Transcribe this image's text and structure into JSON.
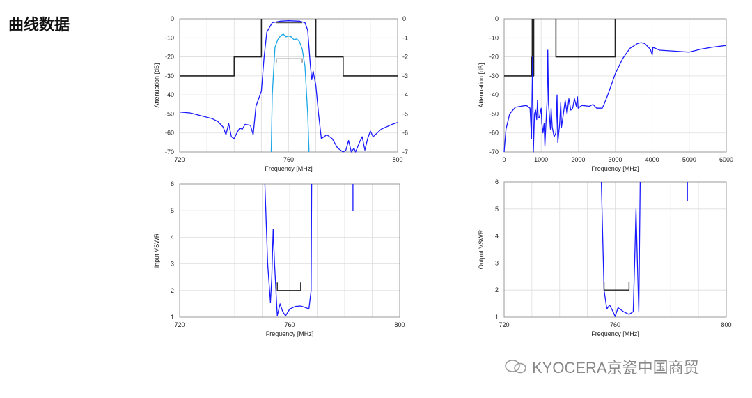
{
  "heading": "曲线数据",
  "watermark": "KYOCERA京瓷中国商贸",
  "colors": {
    "series_main": "#1a1aff",
    "series_light": "#1aa6e6",
    "mask": "#222222",
    "bracket": "#555555",
    "grid": "#dddddd"
  },
  "chart_data": [
    {
      "type": "line",
      "title": "",
      "xlabel": "Frequency [MHz]",
      "ylabel": "Attenuation [dB]",
      "xlim": [
        720,
        800
      ],
      "ylim": [
        -70,
        0
      ],
      "y2lim": [
        -7,
        0
      ],
      "xticks": [
        720,
        760,
        800
      ],
      "yticks": [
        0,
        -10,
        -20,
        -30,
        -40,
        -50,
        -60,
        -70
      ],
      "y2ticks": [
        0,
        -1,
        -2,
        -3,
        -4,
        -5,
        -6,
        -7
      ],
      "grid": true,
      "xgrid_step": 10,
      "series": [
        {
          "role": "mask",
          "color": "#222222",
          "axis": "y",
          "points": [
            [
              720,
              -30
            ],
            [
              740,
              -30
            ],
            [
              740,
              -20
            ],
            [
              750,
              -20
            ],
            [
              750,
              0
            ]
          ]
        },
        {
          "role": "mask",
          "color": "#222222",
          "axis": "y",
          "points": [
            [
              770,
              0
            ],
            [
              770,
              -20
            ],
            [
              780,
              -20
            ],
            [
              780,
              -30
            ],
            [
              800,
              -30
            ]
          ]
        },
        {
          "role": "wide",
          "color": "#1a1aff",
          "axis": "y",
          "points": [
            [
              720,
              -49
            ],
            [
              724,
              -49.5
            ],
            [
              728,
              -51
            ],
            [
              732,
              -52.5
            ],
            [
              734,
              -54
            ],
            [
              736,
              -57
            ],
            [
              737,
              -61
            ],
            [
              738,
              -55
            ],
            [
              739,
              -62
            ],
            [
              740,
              -63
            ],
            [
              741,
              -60
            ],
            [
              742,
              -57.5
            ],
            [
              743,
              -58
            ],
            [
              744,
              -55.5
            ],
            [
              746,
              -56
            ],
            [
              747,
              -61
            ],
            [
              748,
              -46
            ],
            [
              749,
              -42
            ],
            [
              750,
              -38
            ],
            [
              751,
              -20
            ],
            [
              752,
              -7
            ],
            [
              754,
              -2
            ],
            [
              757,
              -1.2
            ],
            [
              760,
              -1
            ],
            [
              764,
              -1.2
            ],
            [
              766,
              -2
            ],
            [
              767,
              -6
            ],
            [
              768,
              -25
            ],
            [
              768.5,
              -32
            ],
            [
              769,
              -27.5
            ],
            [
              770,
              -35
            ],
            [
              771,
              -50
            ],
            [
              772,
              -63
            ],
            [
              773,
              -62
            ],
            [
              774,
              -61
            ],
            [
              776,
              -63
            ],
            [
              778,
              -68
            ],
            [
              780,
              -70
            ],
            [
              781,
              -69
            ],
            [
              782,
              -64
            ],
            [
              783,
              -70
            ],
            [
              784,
              -68
            ],
            [
              784.6,
              -70
            ],
            [
              786,
              -65
            ],
            [
              787,
              -62
            ],
            [
              788,
              -69
            ],
            [
              789,
              -63
            ],
            [
              790,
              -59
            ],
            [
              791,
              -62
            ],
            [
              794,
              -58
            ],
            [
              798,
              -55.5
            ],
            [
              800,
              -54.5
            ]
          ]
        },
        {
          "role": "passband",
          "color": "#1aa6e6",
          "axis": "y2",
          "points": [
            [
              753.6,
              -7
            ],
            [
              754,
              -4
            ],
            [
              755,
              -1.5
            ],
            [
              756,
              -1.1
            ],
            [
              757,
              -0.9
            ],
            [
              758,
              -0.8
            ],
            [
              759,
              -0.95
            ],
            [
              760,
              -0.9
            ],
            [
              761,
              -0.95
            ],
            [
              762,
              -1.1
            ],
            [
              763,
              -1.05
            ],
            [
              764,
              -1.2
            ],
            [
              765,
              -1.6
            ],
            [
              766,
              -2.5
            ],
            [
              767,
              -5
            ],
            [
              767.5,
              -7
            ]
          ]
        },
        {
          "role": "bracket",
          "color": "#555555",
          "axis": "y",
          "points": [
            [
              755.5,
              -2
            ],
            [
              765,
              -2
            ]
          ]
        },
        {
          "role": "bracket",
          "color": "#888888",
          "axis": "y2",
          "points": [
            [
              755.5,
              -2.3
            ],
            [
              755.5,
              -2.1
            ],
            [
              765,
              -2.1
            ],
            [
              765,
              -2.3
            ]
          ]
        }
      ]
    },
    {
      "type": "line",
      "title": "",
      "xlabel": "Frequency [MHz]",
      "ylabel": "Attenuation [dB]",
      "xlim": [
        0,
        6000
      ],
      "ylim": [
        -70,
        0
      ],
      "xticks": [
        0,
        1000,
        2000,
        3000,
        4000,
        5000,
        6000
      ],
      "yticks": [
        0,
        -10,
        -20,
        -30,
        -40,
        -50,
        -60,
        -70
      ],
      "grid": true,
      "xgrid_step": 1000,
      "series": [
        {
          "role": "mask",
          "color": "#222222",
          "axis": "y",
          "points": [
            [
              0,
              -30
            ],
            [
              760,
              -30
            ],
            [
              760,
              0
            ]
          ]
        },
        {
          "role": "mask",
          "color": "#222222",
          "axis": "y",
          "points": [
            [
              800,
              0
            ],
            [
              800,
              -30
            ],
            [
              740,
              -30
            ],
            [
              740,
              -20
            ]
          ]
        },
        {
          "role": "mask",
          "color": "#222222",
          "axis": "y",
          "points": [
            [
              1400,
              0
            ],
            [
              1400,
              -20
            ],
            [
              3000,
              -20
            ],
            [
              3000,
              0
            ]
          ]
        },
        {
          "role": "wide",
          "color": "#1a1aff",
          "axis": "y",
          "points": [
            [
              0,
              -70
            ],
            [
              50,
              -58
            ],
            [
              150,
              -50
            ],
            [
              300,
              -46.5
            ],
            [
              600,
              -45.5
            ],
            [
              700,
              -47
            ],
            [
              740,
              -63
            ],
            [
              770,
              -20
            ],
            [
              790,
              -70
            ],
            [
              820,
              -50
            ],
            [
              850,
              -48
            ],
            [
              880,
              -53
            ],
            [
              900,
              -43
            ],
            [
              920,
              -52
            ],
            [
              950,
              -52
            ],
            [
              1000,
              -47
            ],
            [
              1020,
              -55
            ],
            [
              1050,
              -60
            ],
            [
              1080,
              -55
            ],
            [
              1100,
              -67
            ],
            [
              1130,
              -55
            ],
            [
              1160,
              -43
            ],
            [
              1180,
              -16.5
            ],
            [
              1200,
              -45
            ],
            [
              1250,
              -58
            ],
            [
              1270,
              -47
            ],
            [
              1300,
              -57
            ],
            [
              1350,
              -62
            ],
            [
              1400,
              -60
            ],
            [
              1430,
              -40
            ],
            [
              1450,
              -65
            ],
            [
              1500,
              -55
            ],
            [
              1530,
              -44
            ],
            [
              1550,
              -57
            ],
            [
              1600,
              -50
            ],
            [
              1650,
              -43
            ],
            [
              1700,
              -50
            ],
            [
              1750,
              -42
            ],
            [
              1800,
              -48
            ],
            [
              1850,
              -47
            ],
            [
              1900,
              -42
            ],
            [
              1950,
              -46
            ],
            [
              1980,
              -41
            ],
            [
              2000,
              -47
            ],
            [
              2100,
              -45.5
            ],
            [
              2300,
              -46
            ],
            [
              2400,
              -45
            ],
            [
              2500,
              -47
            ],
            [
              2650,
              -47
            ],
            [
              2700,
              -45
            ],
            [
              2800,
              -40
            ],
            [
              3000,
              -29
            ],
            [
              3200,
              -21
            ],
            [
              3400,
              -15.5
            ],
            [
              3600,
              -13
            ],
            [
              3700,
              -12.5
            ],
            [
              3800,
              -13
            ],
            [
              3950,
              -16
            ],
            [
              4000,
              -19
            ],
            [
              4020,
              -15
            ],
            [
              4200,
              -16.5
            ],
            [
              4600,
              -17
            ],
            [
              5000,
              -17.5
            ],
            [
              5300,
              -16
            ],
            [
              5600,
              -15
            ],
            [
              6000,
              -14
            ]
          ]
        }
      ]
    },
    {
      "type": "line",
      "title": "",
      "xlabel": "Frequency [MHz]",
      "ylabel": "Input VSWR",
      "xlim": [
        720,
        800
      ],
      "ylim": [
        1,
        6
      ],
      "xticks": [
        720,
        760,
        800
      ],
      "yticks": [
        1,
        2,
        3,
        4,
        5,
        6
      ],
      "grid": true,
      "xgrid_step": 10,
      "series": [
        {
          "role": "vswr",
          "color": "#1a1aff",
          "axis": "y",
          "points": [
            [
              751,
              6
            ],
            [
              752,
              3
            ],
            [
              753,
              1.55
            ],
            [
              753.5,
              2.5
            ],
            [
              754,
              4.3
            ],
            [
              754.5,
              3
            ],
            [
              755.5,
              1.05
            ],
            [
              756.5,
              1.5
            ],
            [
              757.5,
              1.2
            ],
            [
              758.5,
              1.05
            ],
            [
              760,
              1.3
            ],
            [
              762,
              1.4
            ],
            [
              764,
              1.42
            ],
            [
              766,
              1.35
            ],
            [
              767,
              1.3
            ],
            [
              767.8,
              2
            ],
            [
              768,
              6
            ]
          ]
        },
        {
          "role": "spur",
          "color": "#1a1aff",
          "axis": "y",
          "points": [
            [
              783,
              5
            ],
            [
              783,
              6
            ]
          ]
        },
        {
          "role": "bracket",
          "color": "#222222",
          "axis": "y",
          "points": [
            [
              755.5,
              2.3
            ],
            [
              755.5,
              2
            ],
            [
              764,
              2
            ],
            [
              764,
              2.3
            ]
          ]
        }
      ]
    },
    {
      "type": "line",
      "title": "",
      "xlabel": "Frequency [MHz]",
      "ylabel": "Output VSWR",
      "xlim": [
        720,
        800
      ],
      "ylim": [
        1,
        6
      ],
      "xticks": [
        720,
        760,
        800
      ],
      "yticks": [
        1,
        2,
        3,
        4,
        5,
        6
      ],
      "grid": true,
      "xgrid_step": 10,
      "series": [
        {
          "role": "vswr",
          "color": "#1a1aff",
          "axis": "y",
          "points": [
            [
              755,
              6
            ],
            [
              756,
              2
            ],
            [
              757,
              1.3
            ],
            [
              758,
              1.45
            ],
            [
              759,
              1.25
            ],
            [
              760,
              1.02
            ],
            [
              761,
              1.35
            ],
            [
              763,
              1.2
            ],
            [
              765,
              1.1
            ],
            [
              766.5,
              1.2
            ],
            [
              767,
              3
            ],
            [
              767.5,
              5
            ],
            [
              768,
              3
            ],
            [
              768.5,
              1.2
            ],
            [
              769,
              6
            ]
          ]
        },
        {
          "role": "spur",
          "color": "#1a1aff",
          "axis": "y",
          "points": [
            [
              786,
              5.3
            ],
            [
              786,
              6
            ]
          ]
        },
        {
          "role": "bracket",
          "color": "#222222",
          "axis": "y",
          "points": [
            [
              756,
              2.3
            ],
            [
              756,
              2
            ],
            [
              765,
              2
            ],
            [
              765,
              2.3
            ]
          ]
        }
      ]
    }
  ]
}
